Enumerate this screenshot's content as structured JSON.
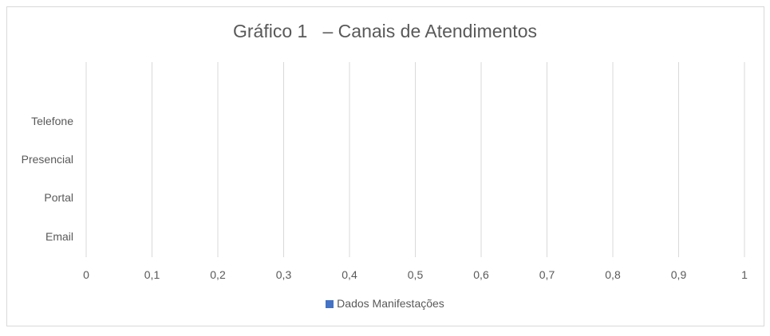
{
  "chart_data": {
    "type": "bar",
    "orientation": "horizontal",
    "title": "Gráfico 1   – Canais de Atendimentos",
    "categories": [
      "Telefone",
      "Presencial",
      "Portal",
      "Email"
    ],
    "series": [
      {
        "name": "Dados Manifestações",
        "values": [
          0,
          0,
          0,
          0
        ],
        "color": "#4472c4"
      }
    ],
    "x_ticks": [
      "0",
      "0,1",
      "0,2",
      "0,3",
      "0,4",
      "0,5",
      "0,6",
      "0,7",
      "0,8",
      "0,9",
      "1"
    ],
    "xlim": [
      0,
      1
    ],
    "grid": true,
    "legend_position": "bottom",
    "colors": {
      "text": "#595959",
      "grid": "#d9d9d9"
    }
  }
}
